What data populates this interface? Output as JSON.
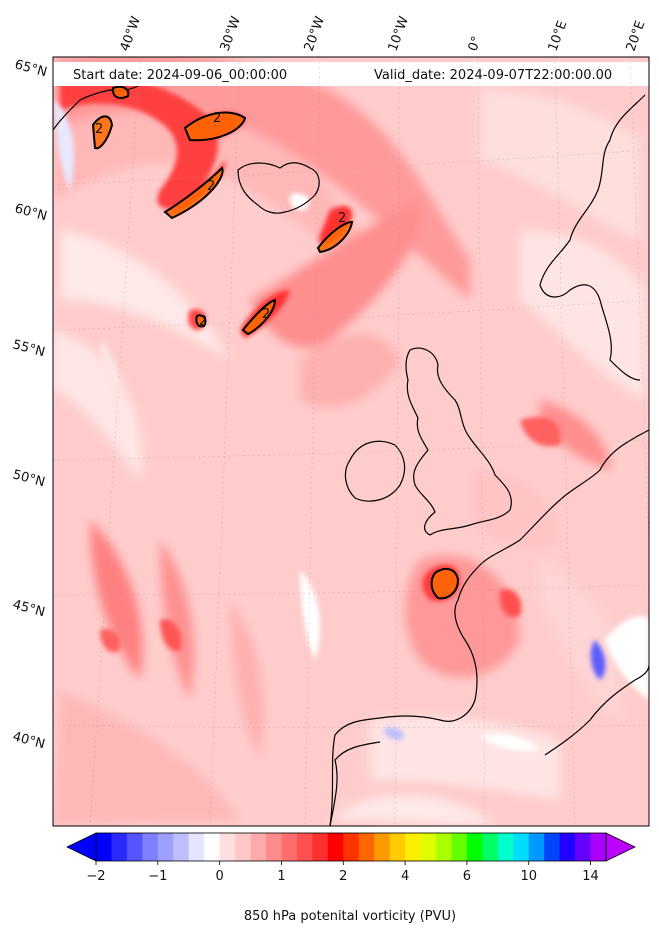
{
  "header": {
    "start_date": "Start date: 2024-09-06_00:00:00",
    "valid_date": "Valid_date: 2024-09-07T22:00:00.00"
  },
  "longitude_labels": [
    "40°W",
    "30°W",
    "20°W",
    "10°W",
    "0°",
    "10°E",
    "20°E"
  ],
  "latitude_labels": [
    "65°N",
    "60°N",
    "55°N",
    "50°N",
    "45°N",
    "40°N"
  ],
  "contour_label": "2",
  "colorbar": {
    "label": "850 hPa potenital vorticity (PVU)",
    "tick_labels": [
      "−2",
      "−1",
      "0",
      "1",
      "2",
      "4",
      "6",
      "10",
      "14"
    ],
    "colors": [
      "#0000ff",
      "#2a2aff",
      "#5555ff",
      "#7f7fff",
      "#9f9fff",
      "#bfbfff",
      "#e5e5ff",
      "#ffffff",
      "#ffe0e0",
      "#ffc8c8",
      "#ffaaaa",
      "#ff8c8c",
      "#ff6e6e",
      "#ff5050",
      "#ff3030",
      "#ff0000",
      "#ff3300",
      "#ff6600",
      "#ff9900",
      "#ffcc00",
      "#ffee00",
      "#ddff00",
      "#aaff00",
      "#66ff00",
      "#00ff00",
      "#00ff66",
      "#00ffcc",
      "#00ddff",
      "#0099ff",
      "#0044ff",
      "#2200ff",
      "#6600ff",
      "#aa00ff"
    ],
    "extend_low_color": "#0000ff",
    "extend_high_color": "#bb00ff"
  },
  "map": {
    "ocean_color": "#ffd6d6",
    "contour_color": "#000000"
  }
}
